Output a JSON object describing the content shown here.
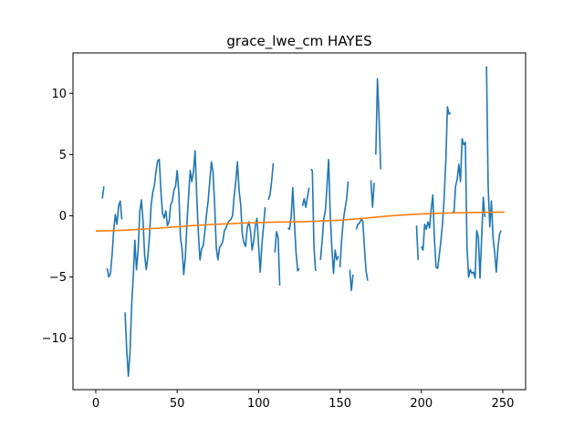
{
  "chart_data": {
    "type": "line",
    "title": "grace_lwe_cm HAYES",
    "xlabel": "",
    "ylabel": "",
    "xlim": [
      -14,
      264
    ],
    "ylim": [
      -14.2,
      13.3
    ],
    "xticks": [
      0,
      50,
      100,
      150,
      200,
      250
    ],
    "yticks": [
      -10,
      -5,
      0,
      5,
      10
    ],
    "ytick_labels": [
      "−10",
      "−5",
      "0",
      "5",
      "10"
    ],
    "grid": false,
    "legend": "none",
    "series": [
      {
        "color": "#1f77b4",
        "segments": [
          [
            [
              4,
              1.4
            ],
            [
              5,
              2.4
            ]
          ],
          [
            [
              7,
              -4.3
            ],
            [
              8,
              -5.0
            ],
            [
              9,
              -4.7
            ],
            [
              10,
              -3.2
            ],
            [
              11,
              -1.2
            ],
            [
              12,
              0.1
            ],
            [
              13,
              -0.7
            ],
            [
              14,
              0.8
            ],
            [
              15,
              1.2
            ],
            [
              16,
              -0.3
            ]
          ],
          [
            [
              18,
              -7.9
            ],
            [
              19,
              -11.0
            ],
            [
              20,
              -13.1
            ],
            [
              21,
              -11.2
            ],
            [
              22,
              -7.4
            ],
            [
              23,
              -5.0
            ],
            [
              24,
              -2.0
            ],
            [
              25,
              -4.4
            ],
            [
              26,
              -2.8
            ],
            [
              27,
              0.3
            ],
            [
              28,
              1.3
            ],
            [
              29,
              -0.4
            ],
            [
              30,
              -3.2
            ],
            [
              31,
              -4.4
            ],
            [
              32,
              -3.3
            ],
            [
              33,
              -1.6
            ],
            [
              34,
              0.9
            ],
            [
              35,
              1.9
            ],
            [
              36,
              2.5
            ],
            [
              37,
              3.6
            ],
            [
              38,
              4.5
            ],
            [
              39,
              4.6
            ],
            [
              40,
              2.0
            ],
            [
              41,
              0.2
            ],
            [
              42,
              -0.2
            ],
            [
              43,
              0.4
            ],
            [
              44,
              -0.8
            ],
            [
              45,
              -0.5
            ],
            [
              46,
              0.9
            ],
            [
              47,
              1.2
            ],
            [
              48,
              2.1
            ],
            [
              49,
              2.4
            ],
            [
              50,
              3.7
            ],
            [
              51,
              1.9
            ],
            [
              52,
              -1.8
            ],
            [
              53,
              -2.7
            ],
            [
              54,
              -4.8
            ],
            [
              55,
              -3.4
            ],
            [
              56,
              -0.6
            ],
            [
              57,
              1.6
            ],
            [
              58,
              3.7
            ],
            [
              59,
              2.8
            ],
            [
              60,
              3.6
            ],
            [
              61,
              5.3
            ],
            [
              62,
              1.6
            ],
            [
              63,
              -1.4
            ],
            [
              64,
              -3.6
            ],
            [
              65,
              -2.7
            ],
            [
              66,
              -2.4
            ],
            [
              67,
              -1.3
            ],
            [
              68,
              0.1
            ],
            [
              69,
              1.2
            ],
            [
              70,
              2.8
            ],
            [
              71,
              4.4
            ],
            [
              72,
              3.6
            ],
            [
              73,
              0.9
            ],
            [
              74,
              -2.6
            ],
            [
              75,
              -3.6
            ],
            [
              76,
              -2.6
            ],
            [
              77,
              -2.4
            ],
            [
              78,
              -2.1
            ],
            [
              79,
              -1.2
            ],
            [
              80,
              -1.0
            ],
            [
              81,
              -0.6
            ],
            [
              82,
              -0.4
            ],
            [
              83,
              -0.3
            ],
            [
              84,
              0.0
            ],
            [
              85,
              1.6
            ],
            [
              86,
              2.8
            ],
            [
              87,
              4.4
            ],
            [
              88,
              2.1
            ],
            [
              89,
              0.9
            ],
            [
              90,
              -1.5
            ],
            [
              91,
              -2.2
            ],
            [
              92,
              -2.5
            ],
            [
              93,
              -1.0
            ],
            [
              94,
              -0.5
            ],
            [
              95,
              -1.2
            ],
            [
              96,
              -2.8
            ],
            [
              97,
              -2.1
            ],
            [
              98,
              -0.8
            ],
            [
              99,
              -0.2
            ],
            [
              100,
              -2.4
            ],
            [
              101,
              -4.6
            ],
            [
              102,
              -2.4
            ],
            [
              103,
              -0.9
            ],
            [
              104,
              0.7
            ]
          ],
          [
            [
              106,
              1.3
            ],
            [
              107,
              1.7
            ],
            [
              108,
              2.8
            ],
            [
              109,
              4.3
            ]
          ],
          [
            [
              110,
              -3.0
            ],
            [
              111,
              -1.3
            ],
            [
              112,
              -1.8
            ],
            [
              113,
              -5.7
            ]
          ],
          [
            [
              118,
              -1.0
            ],
            [
              119,
              -1.1
            ],
            [
              120,
              -0.1
            ],
            [
              121,
              2.3
            ],
            [
              122,
              -0.5
            ],
            [
              123,
              -3.0
            ],
            [
              124,
              -4.5
            ],
            [
              125,
              -4.3
            ]
          ],
          [
            [
              127,
              0.8
            ],
            [
              128,
              1.4
            ],
            [
              129,
              0.7
            ],
            [
              130,
              1.5
            ],
            [
              131,
              2.3
            ]
          ],
          [
            [
              132,
              3.8
            ],
            [
              133,
              3.7
            ],
            [
              134,
              -2.5
            ],
            [
              135,
              -4.5
            ]
          ],
          [
            [
              138,
              -3.6
            ],
            [
              139,
              -2.1
            ],
            [
              140,
              -0.3
            ],
            [
              141,
              0.4
            ],
            [
              142,
              2.4
            ],
            [
              143,
              4.6
            ],
            [
              144,
              0.1
            ],
            [
              145,
              -2.6
            ],
            [
              146,
              -4.7
            ],
            [
              147,
              -2.8
            ],
            [
              148,
              -3.6
            ],
            [
              149,
              -3.3
            ]
          ],
          [
            [
              150,
              -4.2
            ],
            [
              151,
              -2.0
            ],
            [
              152,
              -0.4
            ],
            [
              153,
              0.5
            ],
            [
              154,
              1.3
            ],
            [
              155,
              2.8
            ]
          ],
          [
            [
              156,
              -4.4
            ],
            [
              157,
              -6.1
            ],
            [
              158,
              -4.8
            ]
          ],
          [
            [
              160,
              -1.1
            ],
            [
              161,
              -0.7
            ],
            [
              162,
              -0.6
            ],
            [
              163,
              -0.3
            ],
            [
              164,
              -0.4
            ],
            [
              165,
              -2.6
            ],
            [
              166,
              -4.5
            ],
            [
              167,
              -5.3
            ]
          ],
          [
            [
              169,
              2.9
            ],
            [
              170,
              0.7
            ],
            [
              171,
              2.7
            ]
          ],
          [
            [
              172,
              5.0
            ],
            [
              173,
              11.2
            ],
            [
              174,
              8.0
            ],
            [
              175,
              3.8
            ]
          ],
          [
            [
              197,
              -0.8
            ],
            [
              198,
              -3.6
            ]
          ],
          [
            [
              200,
              -2.5
            ],
            [
              201,
              -2.8
            ],
            [
              202,
              -0.7
            ],
            [
              203,
              -1.1
            ],
            [
              204,
              -0.5
            ],
            [
              205,
              -1.0
            ],
            [
              206,
              0.5
            ],
            [
              207,
              1.7
            ],
            [
              208,
              -1.9
            ],
            [
              209,
              -4.2
            ],
            [
              210,
              -4.3
            ],
            [
              211,
              -3.2
            ],
            [
              212,
              -2.0
            ],
            [
              213,
              -0.6
            ],
            [
              214,
              1.5
            ],
            [
              215,
              4.5
            ],
            [
              216,
              8.9
            ],
            [
              217,
              8.3
            ],
            [
              218,
              8.4
            ]
          ],
          [
            [
              219,
              0.3
            ],
            [
              220,
              0.3
            ],
            [
              221,
              2.4
            ],
            [
              222,
              3.0
            ],
            [
              223,
              4.2
            ],
            [
              224,
              2.8
            ],
            [
              225,
              6.3
            ],
            [
              226,
              5.8
            ],
            [
              227,
              6.0
            ],
            [
              228,
              -2.5
            ],
            [
              229,
              -5.0
            ],
            [
              230,
              -4.4
            ],
            [
              231,
              -4.7
            ],
            [
              232,
              -4.6
            ],
            [
              233,
              -5.1
            ],
            [
              234,
              -1.2
            ],
            [
              235,
              -1.8
            ],
            [
              236,
              -5.1
            ],
            [
              237,
              -1.8
            ],
            [
              238,
              1.5
            ],
            [
              239,
              -0.1
            ]
          ],
          [
            [
              240,
              12.2
            ],
            [
              241,
              2.4
            ],
            [
              242,
              -0.9
            ],
            [
              243,
              1.2
            ],
            [
              244,
              -1.8
            ],
            [
              245,
              -3.0
            ],
            [
              246,
              -4.6
            ],
            [
              247,
              -2.6
            ],
            [
              248,
              -1.5
            ],
            [
              249,
              -1.2
            ]
          ]
        ]
      },
      {
        "color": "#ff7f0e",
        "segments": [
          [
            [
              0,
              -1.25
            ],
            [
              10,
              -1.22
            ],
            [
              20,
              -1.16
            ],
            [
              30,
              -1.08
            ],
            [
              40,
              -1.0
            ],
            [
              50,
              -0.9
            ],
            [
              60,
              -0.8
            ],
            [
              70,
              -0.72
            ],
            [
              80,
              -0.66
            ],
            [
              90,
              -0.6
            ],
            [
              100,
              -0.56
            ],
            [
              110,
              -0.52
            ],
            [
              120,
              -0.5
            ],
            [
              130,
              -0.47
            ],
            [
              140,
              -0.42
            ],
            [
              150,
              -0.36
            ],
            [
              160,
              -0.26
            ],
            [
              170,
              -0.14
            ],
            [
              180,
              -0.02
            ],
            [
              190,
              0.08
            ],
            [
              200,
              0.15
            ],
            [
              210,
              0.2
            ],
            [
              220,
              0.24
            ],
            [
              230,
              0.26
            ],
            [
              240,
              0.28
            ],
            [
              251,
              0.3
            ]
          ]
        ]
      }
    ]
  }
}
